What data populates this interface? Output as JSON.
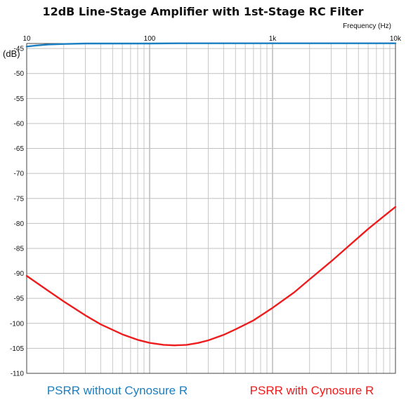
{
  "chart_data": {
    "type": "line",
    "title": "12dB Line-Stage Amplifier with 1st-Stage RC Filter",
    "xlabel": "Frequency   (Hz)",
    "ylabel": "(dB)",
    "x_scale": "log",
    "xlim": [
      10,
      10000
    ],
    "ylim": [
      -110,
      -44
    ],
    "x_ticks": [
      {
        "value": 10,
        "label": "10"
      },
      {
        "value": 100,
        "label": "100"
      },
      {
        "value": 1000,
        "label": "1k"
      },
      {
        "value": 10000,
        "label": "10k"
      }
    ],
    "y_ticks": [
      {
        "value": -45,
        "label": "-45"
      },
      {
        "value": -50,
        "label": "-50"
      },
      {
        "value": -55,
        "label": "-55"
      },
      {
        "value": -60,
        "label": "-60"
      },
      {
        "value": -65,
        "label": "-65"
      },
      {
        "value": -70,
        "label": "-70"
      },
      {
        "value": -75,
        "label": "-75"
      },
      {
        "value": -80,
        "label": "-80"
      },
      {
        "value": -85,
        "label": "-85"
      },
      {
        "value": -90,
        "label": "-90"
      },
      {
        "value": -95,
        "label": "-95"
      },
      {
        "value": -100,
        "label": "-100"
      },
      {
        "value": -105,
        "label": "-105"
      },
      {
        "value": -110,
        "label": "-110"
      }
    ],
    "grid": true,
    "legend_position": "bottom",
    "series": [
      {
        "name": "PSRR without Cynosure R",
        "color": "#1a7fc1",
        "x": [
          10,
          12,
          15,
          20,
          30,
          50,
          100,
          200,
          500,
          1000,
          2000,
          5000,
          10000
        ],
        "y": [
          -44.6,
          -44.4,
          -44.2,
          -44.1,
          -44.0,
          -44.0,
          -44.0,
          -43.95,
          -43.95,
          -43.95,
          -43.95,
          -43.95,
          -43.95
        ]
      },
      {
        "name": "PSRR with Cynosure R",
        "color": "#ee1c1c",
        "x": [
          10,
          15,
          20,
          30,
          40,
          60,
          80,
          100,
          130,
          160,
          200,
          250,
          300,
          400,
          500,
          700,
          1000,
          1500,
          2000,
          3000,
          4000,
          6000,
          8000,
          10000
        ],
        "y": [
          -90.5,
          -93.5,
          -95.6,
          -98.4,
          -100.2,
          -102.2,
          -103.3,
          -103.9,
          -104.3,
          -104.4,
          -104.3,
          -103.9,
          -103.4,
          -102.3,
          -101.2,
          -99.4,
          -96.9,
          -93.8,
          -91.2,
          -87.6,
          -84.9,
          -81.1,
          -78.6,
          -76.7
        ]
      }
    ]
  }
}
